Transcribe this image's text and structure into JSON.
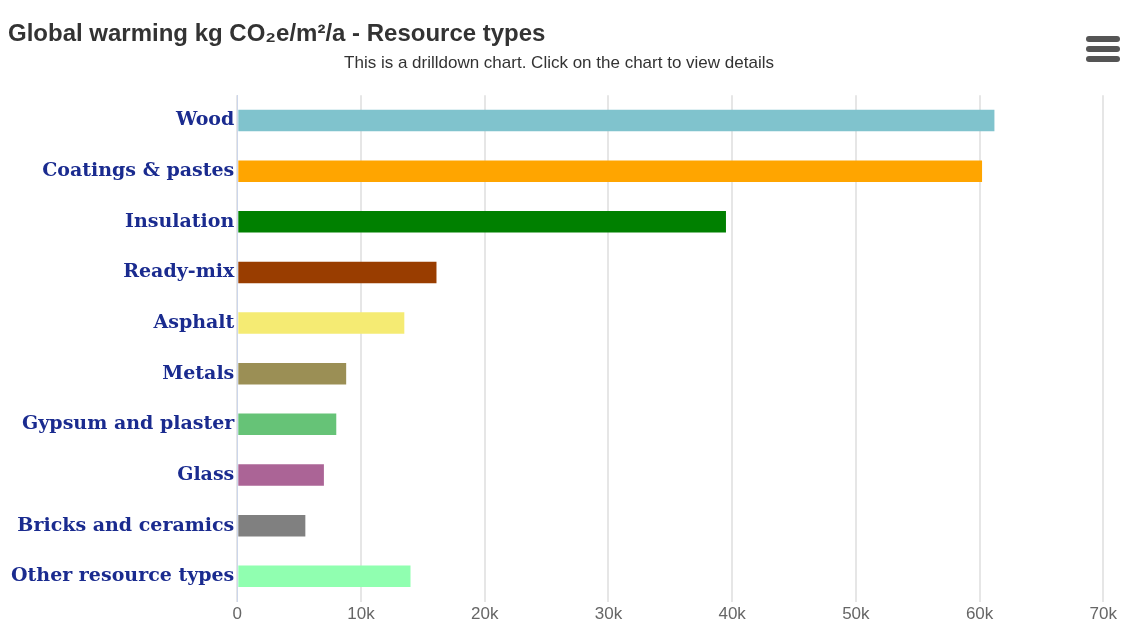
{
  "chart_data": {
    "type": "bar",
    "orientation": "horizontal",
    "title": "Global warming kg CO₂e/m²/a - Resource types",
    "subtitle": "This is a drilldown chart. Click on the chart to view details",
    "categories": [
      "Wood",
      "Coatings & pastes",
      "Insulation",
      "Ready-mix",
      "Asphalt",
      "Metals",
      "Gypsum and plaster",
      "Glass",
      "Bricks and ceramics",
      "Other resource types"
    ],
    "values": [
      61200,
      60200,
      39500,
      16100,
      13500,
      8800,
      8000,
      7000,
      5500,
      14000
    ],
    "colors": [
      "#80c3cd",
      "#ffa500",
      "#008000",
      "#993d00",
      "#f5eb73",
      "#9b8f55",
      "#66c377",
      "#ab6496",
      "#808080",
      "#90ffb0"
    ],
    "xlim": [
      0,
      70000
    ],
    "xticks": [
      {
        "value": 0,
        "label": "0"
      },
      {
        "value": 10000,
        "label": "10k"
      },
      {
        "value": 20000,
        "label": "20k"
      },
      {
        "value": 30000,
        "label": "30k"
      },
      {
        "value": 40000,
        "label": "40k"
      },
      {
        "value": 50000,
        "label": "50k"
      },
      {
        "value": 60000,
        "label": "60k"
      },
      {
        "value": 70000,
        "label": "70k"
      }
    ],
    "grid": "x",
    "legend": false
  }
}
